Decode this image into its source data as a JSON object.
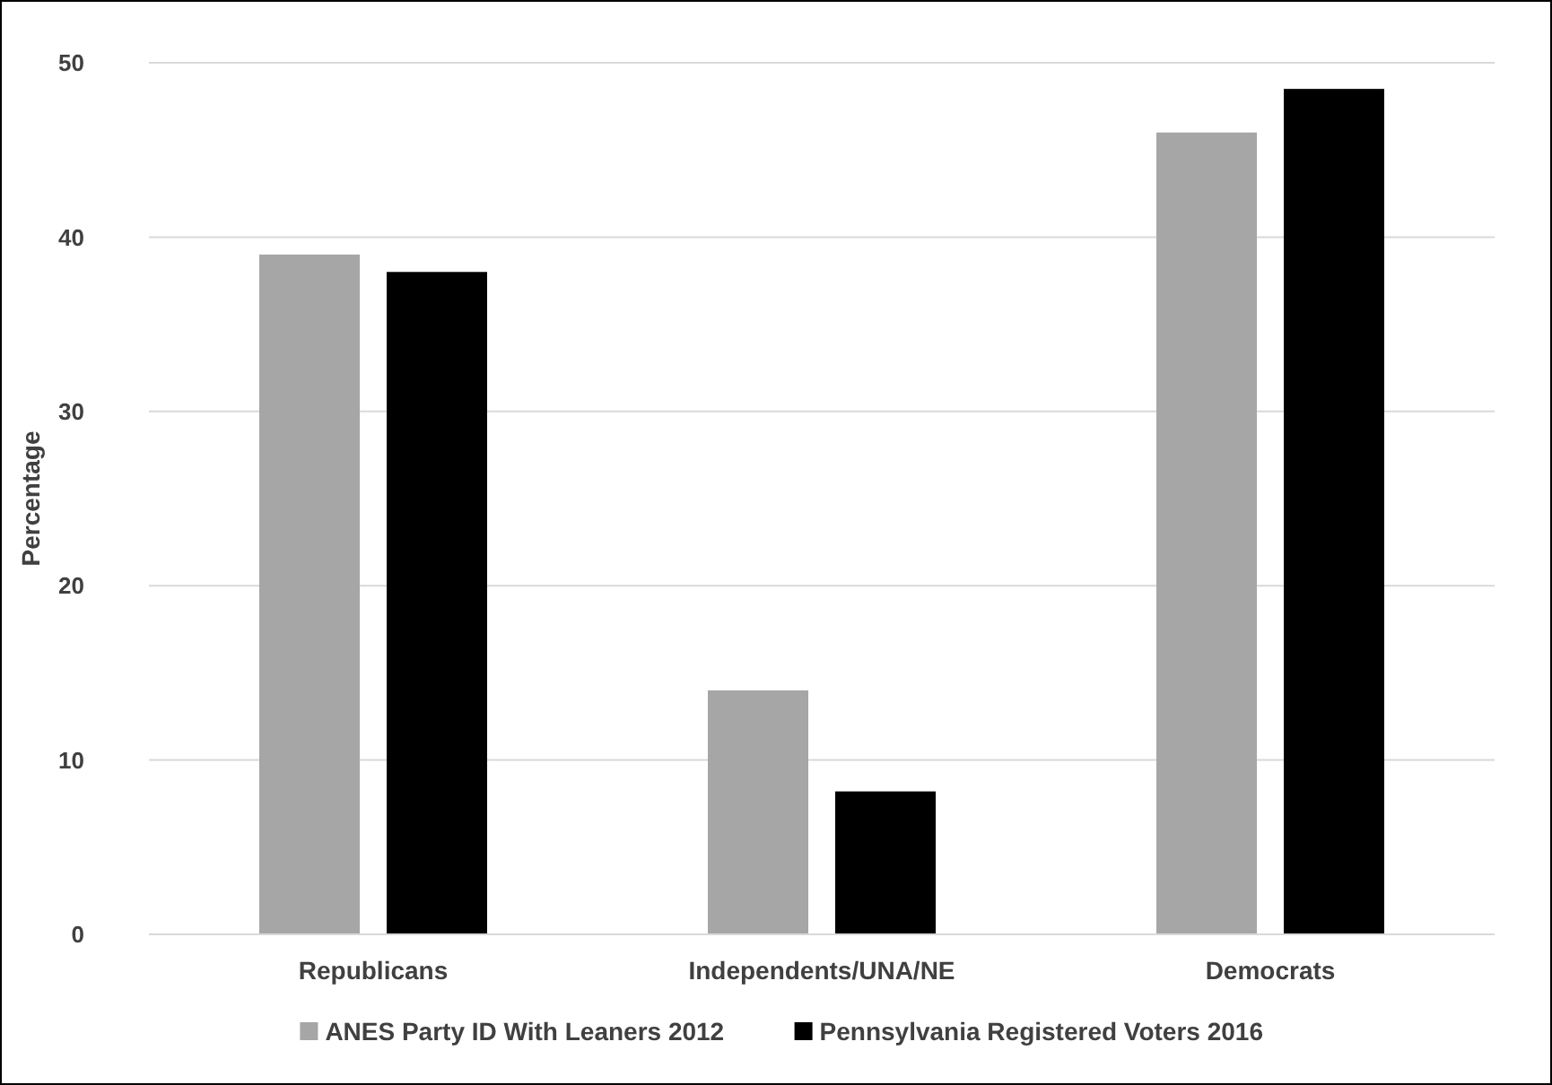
{
  "chart_data": {
    "type": "bar",
    "ylabel": "Percentage",
    "categories": [
      "Republicans",
      "Independents/UNA/NE",
      "Democrats"
    ],
    "series": [
      {
        "name": "ANES Party ID With Leaners 2012",
        "color": "#a6a6a6",
        "values": [
          39,
          14,
          46
        ]
      },
      {
        "name": "Pennsylvania Registered Voters 2016",
        "color": "#000000",
        "values": [
          38,
          8.2,
          48.5
        ]
      }
    ],
    "ylim": [
      0,
      50
    ],
    "yticks": [
      0,
      10,
      20,
      30,
      40,
      50
    ],
    "grid": "y",
    "legend": "bottom"
  }
}
